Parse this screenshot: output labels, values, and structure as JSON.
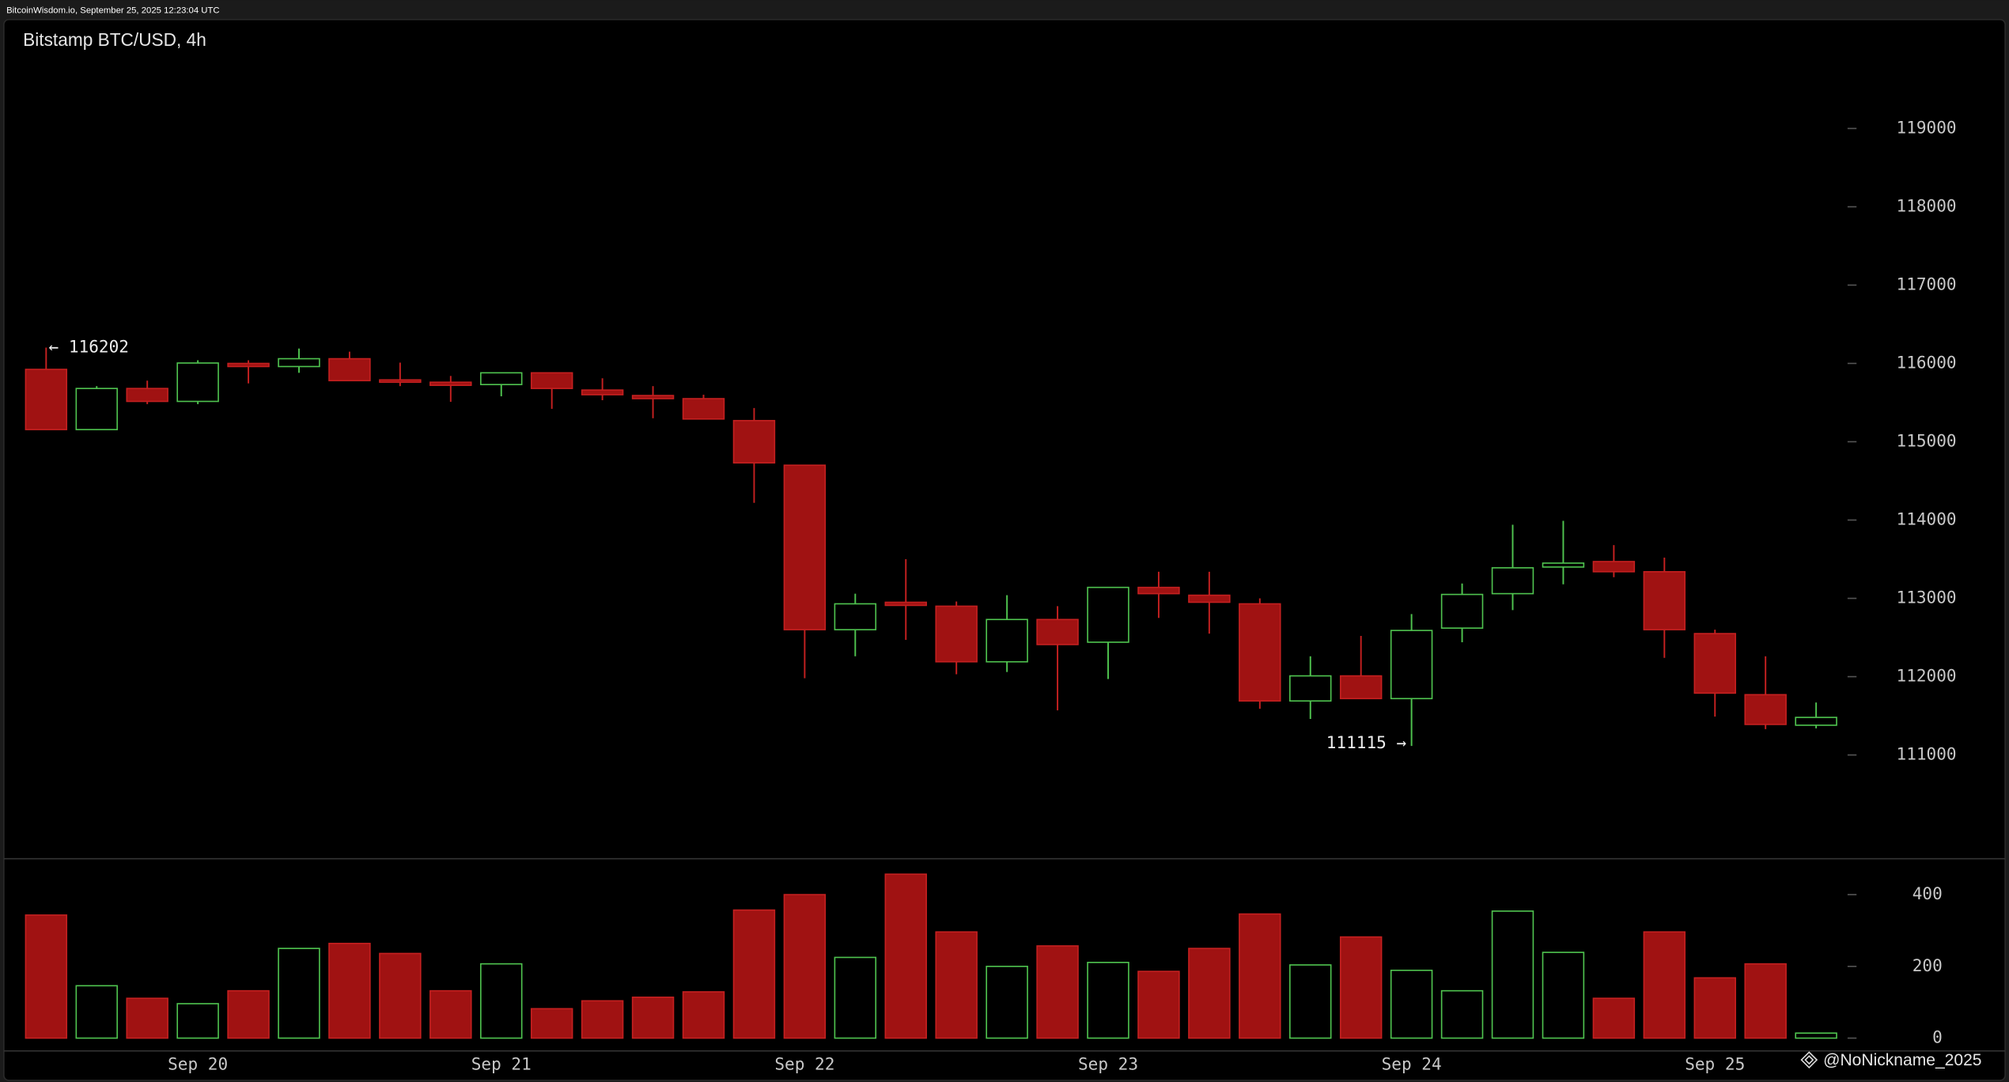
{
  "header": "BitcoinWisdom.io, September 25, 2025 12:23:04 UTC",
  "watermark": "@NoNickname_2025",
  "chart_data": {
    "type": "candlestick",
    "title": "Bitstamp BTC/USD, 4h",
    "categories": [
      null,
      null,
      null,
      "Sep 20",
      null,
      null,
      null,
      null,
      null,
      "Sep 21",
      null,
      null,
      null,
      null,
      null,
      "Sep 22",
      null,
      null,
      null,
      null,
      null,
      "Sep 23",
      null,
      null,
      null,
      null,
      null,
      "Sep 24",
      null,
      null,
      null,
      null,
      null,
      "Sep 25",
      null,
      null
    ],
    "open": [
      115924,
      115155,
      115680,
      115515,
      116000,
      115960,
      116060,
      115790,
      115760,
      115730,
      115880,
      115660,
      115590,
      115550,
      115270,
      114700,
      112600,
      112950,
      112900,
      112190,
      112730,
      112440,
      113140,
      113040,
      112930,
      111690,
      112010,
      111720,
      112620,
      113060,
      113400,
      113470,
      113340,
      112550,
      111770,
      111380
    ],
    "high": [
      116202,
      115710,
      115780,
      116040,
      116040,
      116190,
      116150,
      116010,
      115840,
      115880,
      115880,
      115810,
      115710,
      115600,
      115430,
      114700,
      113060,
      113500,
      112960,
      113040,
      112900,
      113140,
      113340,
      113340,
      113000,
      112260,
      112520,
      112800,
      113190,
      113940,
      113990,
      113680,
      113520,
      112600,
      112260,
      111670
    ],
    "low": [
      115150,
      115150,
      115480,
      115480,
      115745,
      115880,
      115780,
      115710,
      115510,
      115580,
      115420,
      115530,
      115300,
      115290,
      114220,
      111980,
      112260,
      112470,
      112030,
      112060,
      111570,
      111970,
      112750,
      112550,
      111590,
      111460,
      111720,
      111115,
      112440,
      112850,
      113180,
      113270,
      112240,
      111490,
      111330,
      111340
    ],
    "close": [
      115155,
      115680,
      115515,
      116005,
      115960,
      116060,
      115780,
      115760,
      115720,
      115880,
      115680,
      115600,
      115550,
      115290,
      114730,
      112600,
      112930,
      112910,
      112190,
      112730,
      112410,
      113140,
      113060,
      112950,
      111690,
      112010,
      111720,
      112590,
      113050,
      113390,
      113450,
      113340,
      112600,
      111790,
      111390,
      111480
    ],
    "volume": [
      343,
      146,
      111,
      96,
      132,
      250,
      264,
      236,
      132,
      207,
      82,
      104,
      114,
      129,
      357,
      400,
      225,
      457,
      296,
      200,
      257,
      211,
      186,
      250,
      346,
      204,
      282,
      189,
      132,
      354,
      239,
      111,
      296,
      168,
      207,
      14
    ],
    "ylim": [
      109675,
      120391
    ],
    "yticks": [
      111000,
      112000,
      113000,
      114000,
      115000,
      116000,
      117000,
      118000,
      119000
    ],
    "volume_ylim": [
      0,
      500
    ],
    "volume_yticks": [
      0,
      200,
      400
    ],
    "up_color": "#4fc34f",
    "down_color": "#a01212",
    "annotations": {
      "high": "← 116202",
      "low": "111115 →"
    }
  }
}
